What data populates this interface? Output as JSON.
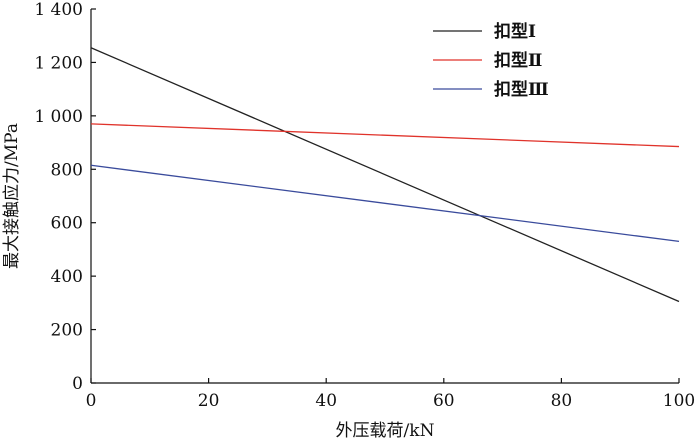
{
  "chart_data": {
    "type": "line",
    "title": "",
    "xlabel": "外压载荷/kN",
    "ylabel": "最大接触应力/MPa",
    "xlim": [
      0,
      100
    ],
    "ylim": [
      0,
      1400
    ],
    "x_ticks": [
      0,
      20,
      40,
      60,
      80,
      100
    ],
    "x_tick_labels": [
      "0",
      "20",
      "40",
      "60",
      "80",
      "100"
    ],
    "y_ticks": [
      0,
      200,
      400,
      600,
      800,
      1000,
      1200,
      1400
    ],
    "y_tick_labels": [
      "0",
      "200",
      "400",
      "600",
      "800",
      "1 000",
      "1 200",
      "1 400"
    ],
    "grid": false,
    "legend_position": "top-right",
    "series": [
      {
        "name": "扣型Ⅰ",
        "color": "#222222",
        "x": [
          0,
          100
        ],
        "y": [
          1255,
          305
        ]
      },
      {
        "name": "扣型Ⅱ",
        "color": "#e0332b",
        "x": [
          0,
          100
        ],
        "y": [
          970,
          885
        ]
      },
      {
        "name": "扣型Ⅲ",
        "color": "#3a4b9c",
        "x": [
          0,
          100
        ],
        "y": [
          815,
          530
        ]
      }
    ]
  }
}
